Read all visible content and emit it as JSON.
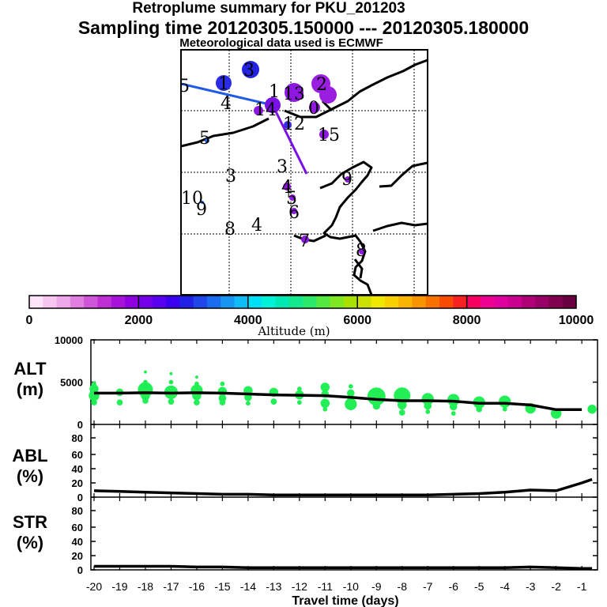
{
  "title": {
    "line1": "Retroplume summary for PKU_201203",
    "line2": "Sampling time   20120305.150000 --- 20120305.180000",
    "line3": "Meteorological data used is ECMWF"
  },
  "map": {
    "labels": [
      {
        "text": "5"
      },
      {
        "text": "3"
      },
      {
        "text": "1"
      },
      {
        "text": "4"
      },
      {
        "text": "1"
      },
      {
        "text": "13"
      },
      {
        "text": "2"
      },
      {
        "text": "14"
      },
      {
        "text": "0"
      },
      {
        "text": "12"
      },
      {
        "text": "15"
      },
      {
        "text": "5"
      },
      {
        "text": "3"
      },
      {
        "text": "3"
      },
      {
        "text": "4"
      },
      {
        "text": "5"
      },
      {
        "text": "9"
      },
      {
        "text": "10"
      },
      {
        "text": "9"
      },
      {
        "text": "6"
      },
      {
        "text": "8"
      },
      {
        "text": "4"
      },
      {
        "text": "7"
      },
      {
        "text": "8"
      }
    ]
  },
  "colorbar": {
    "tick_labels": [
      "0",
      "2000",
      "4000",
      "6000",
      "8000",
      "10000"
    ],
    "label": "Altitude (m)",
    "colors": [
      "#fde3f8",
      "#f6c6f0",
      "#eda6e8",
      "#e07fdf",
      "#cf56d8",
      "#bd2ed3",
      "#a612d8",
      "#8e00e0",
      "#7500ea",
      "#5a00f0",
      "#3a00f0",
      "#2020e6",
      "#1f46e8",
      "#1a6cef",
      "#1596f3",
      "#10bcf6",
      "#00e0f6",
      "#00f0d8",
      "#00e8b4",
      "#14e88e",
      "#2ae86a",
      "#55e840",
      "#80e820",
      "#a8e000",
      "#cce000",
      "#f0e800",
      "#f8d000",
      "#f8b400",
      "#f89400",
      "#f87000",
      "#f84a00",
      "#f82020",
      "#f80060",
      "#f00090",
      "#e000a0",
      "#cc0090",
      "#b00078",
      "#980068",
      "#800050",
      "#680040"
    ]
  },
  "chart_data": [
    {
      "type": "scatter",
      "title": "ALT (m)",
      "label_line1": "ALT",
      "label_line2": "(m)",
      "ylim": [
        0,
        10000
      ],
      "yticks": [
        "10000",
        "5000",
        "0"
      ],
      "color": "#22ee55",
      "x": [
        -20,
        -19,
        -18,
        -17,
        -16,
        -15,
        -14,
        -13,
        -12,
        -11,
        -10,
        -9,
        -8,
        -7,
        -6,
        -5,
        -4,
        -3,
        -2,
        -1
      ],
      "series": [
        {
          "name": "median altitude",
          "values": [
            3700,
            3700,
            3750,
            3700,
            3750,
            3700,
            3600,
            3500,
            3450,
            3400,
            3200,
            2950,
            2800,
            2800,
            2750,
            2500,
            2500,
            2300,
            1750,
            1750
          ]
        }
      ],
      "points": [
        [
          -20,
          4200,
          5
        ],
        [
          -20,
          3400,
          6
        ],
        [
          -20,
          2600,
          3
        ],
        [
          -20,
          4800,
          2
        ],
        [
          -19,
          3800,
          4
        ],
        [
          -19,
          2600,
          3
        ],
        [
          -18,
          4100,
          9
        ],
        [
          -18,
          3400,
          5
        ],
        [
          -18,
          2800,
          3
        ],
        [
          -18,
          5000,
          2
        ],
        [
          -18,
          6200,
          1
        ],
        [
          -17,
          3800,
          8
        ],
        [
          -17,
          2700,
          3
        ],
        [
          -17,
          5000,
          2
        ],
        [
          -17,
          6000,
          1
        ],
        [
          -16,
          4000,
          7
        ],
        [
          -16,
          3400,
          5
        ],
        [
          -16,
          2600,
          3
        ],
        [
          -16,
          4800,
          2
        ],
        [
          -16,
          5600,
          1
        ],
        [
          -15,
          3900,
          5
        ],
        [
          -15,
          3100,
          4
        ],
        [
          -15,
          2600,
          3
        ],
        [
          -15,
          4800,
          2
        ],
        [
          -14,
          4000,
          5
        ],
        [
          -14,
          3200,
          4
        ],
        [
          -14,
          2500,
          2
        ],
        [
          -13,
          3800,
          5
        ],
        [
          -13,
          2700,
          3
        ],
        [
          -12,
          3500,
          5
        ],
        [
          -12,
          4200,
          2
        ],
        [
          -12,
          2600,
          2
        ],
        [
          -11,
          4400,
          5
        ],
        [
          -11,
          3600,
          4
        ],
        [
          -11,
          2500,
          5
        ],
        [
          -11,
          1800,
          2
        ],
        [
          -10,
          2400,
          7
        ],
        [
          -10,
          3700,
          4
        ],
        [
          -10,
          4500,
          2
        ],
        [
          -9,
          3300,
          11
        ],
        [
          -9,
          2200,
          4
        ],
        [
          -8,
          3400,
          10
        ],
        [
          -8,
          2300,
          5
        ],
        [
          -8,
          1400,
          3
        ],
        [
          -7,
          3000,
          7
        ],
        [
          -7,
          2200,
          4
        ],
        [
          -7,
          1500,
          2
        ],
        [
          -6,
          2900,
          7
        ],
        [
          -6,
          2100,
          4
        ],
        [
          -6,
          1300,
          2
        ],
        [
          -5,
          2600,
          7
        ],
        [
          -5,
          1800,
          3
        ],
        [
          -4,
          2700,
          7
        ],
        [
          -4,
          1800,
          2
        ],
        [
          -3,
          1900,
          6
        ],
        [
          -2,
          1300,
          6
        ],
        [
          -0.6,
          1800,
          5
        ]
      ]
    },
    {
      "type": "line",
      "title": "ABL (%)",
      "label_line1": "ABL",
      "label_line2": "(%)",
      "ylim": [
        0,
        100
      ],
      "yticks": [
        "80",
        "60",
        "40",
        "20",
        "0"
      ],
      "x": [
        -20,
        -19,
        -18,
        -17,
        -16,
        -15,
        -14,
        -13,
        -12,
        -11,
        -10,
        -9,
        -8,
        -7,
        -6,
        -5,
        -4,
        -3,
        -2,
        -1,
        -0.6
      ],
      "series": [
        {
          "name": "ABL",
          "values": [
            9,
            8,
            7,
            6,
            5,
            4,
            4,
            3,
            3,
            3,
            3,
            3,
            3,
            3,
            4,
            5,
            7,
            10,
            9,
            20,
            25
          ]
        }
      ]
    },
    {
      "type": "line",
      "title": "STR (%)",
      "label_line1": "STR",
      "label_line2": "(%)",
      "ylim": [
        0,
        100
      ],
      "yticks": [
        "80",
        "60",
        "40",
        "20",
        "0"
      ],
      "x": [
        -20,
        -19,
        -18,
        -17,
        -16,
        -15,
        -14,
        -13,
        -12,
        -11,
        -10,
        -9,
        -8,
        -7,
        -6,
        -5,
        -4,
        -3,
        -2,
        -1,
        -0.6
      ],
      "series": [
        {
          "name": "STR",
          "values": [
            5,
            5,
            5,
            5,
            4,
            4,
            3,
            3,
            3,
            3,
            3,
            3,
            3,
            3,
            3,
            3,
            3,
            4,
            3,
            2,
            2
          ]
        }
      ],
      "xticks": [
        "-20",
        "-19",
        "-18",
        "-17",
        "-16",
        "-15",
        "-14",
        "-13",
        "-12",
        "-11",
        "-10",
        "-9",
        "-8",
        "-7",
        "-6",
        "-5",
        "-4",
        "-3",
        "-2",
        "-1"
      ],
      "xlabel": "Travel time (days)"
    }
  ]
}
